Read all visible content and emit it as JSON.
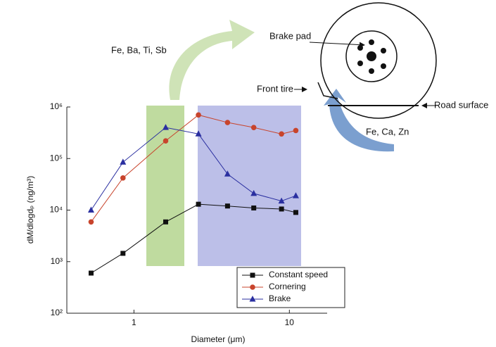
{
  "chart_data": {
    "type": "line",
    "x_label": "Diameter (μm)",
    "y_label": "dM/dlogdₚ (ng/m³)",
    "x": [
      0.53,
      0.85,
      1.6,
      2.6,
      4.0,
      5.9,
      8.9,
      11
    ],
    "series": [
      {
        "name": "Constant speed",
        "color": "#111111",
        "marker": "square",
        "values": [
          600,
          1450,
          5900,
          13000,
          12000,
          11000,
          10500,
          9000
        ]
      },
      {
        "name": "Cornering",
        "color": "#c8442c",
        "marker": "circle",
        "values": [
          5900,
          42000,
          220000,
          700000,
          500000,
          400000,
          300000,
          350000
        ]
      },
      {
        "name": "Brake",
        "color": "#2a2fa0",
        "marker": "triangle",
        "values": [
          10000,
          85000,
          400000,
          300000,
          50000,
          21000,
          15000,
          19000
        ]
      }
    ],
    "xscale": "log",
    "yscale": "log",
    "xlim": [
      0.37,
      17.5
    ],
    "ylim": [
      100,
      1000000
    ],
    "xticks": [
      1,
      10
    ],
    "yticks": [
      {
        "value": 100,
        "label": "10²"
      },
      {
        "value": 1000,
        "label": "10³"
      },
      {
        "value": 10000,
        "label": "10⁴"
      },
      {
        "value": 100000,
        "label": "10⁵"
      },
      {
        "value": 1000000,
        "label": "10⁶"
      }
    ],
    "legend": "bottom-right",
    "annotations": [
      "Fe, Ba, Ti, Sb",
      "Brake pad",
      "Front tire",
      "Road surface",
      "Fe, Ca, Zn"
    ]
  }
}
